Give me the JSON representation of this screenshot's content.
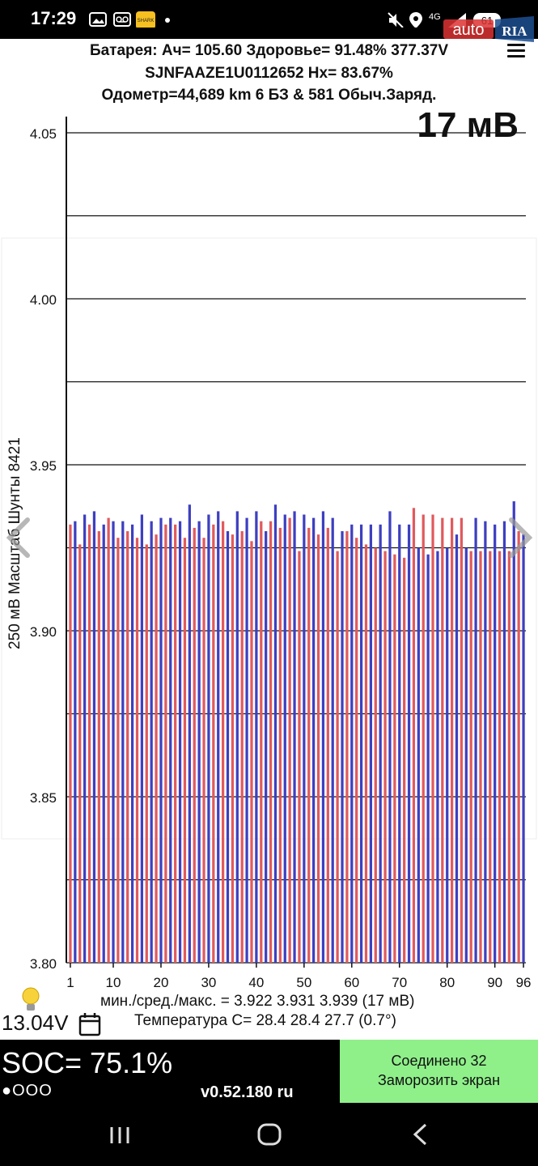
{
  "status_bar": {
    "time": "17:29",
    "icons": [
      "gallery-icon",
      "voicemail-icon",
      "shark-app-icon",
      "dot-icon",
      "mute-icon",
      "location-icon",
      "4g-signal-icon",
      "battery-icon"
    ],
    "battery_level": "61",
    "network": "4G"
  },
  "watermark": {
    "left": "auto",
    "right": "RIA"
  },
  "header": {
    "line1": "Батарея:  Ач= 105.60  Здоровье= 91.48%   377.37V",
    "line2": "SJNFAAZE1U0112652   Hx= 83.67%",
    "line3": "Одометр=44,689 km 6 БЗ & 581 Обыч.Заряд."
  },
  "chart_data": {
    "type": "bar",
    "y_axis_label": "250 мВ Масштаб   Шунты 8421",
    "spread_label": "17 мВ",
    "ylim": [
      3.8,
      4.06
    ],
    "y_ticks": [
      "3.80",
      "3.85",
      "3.90",
      "3.95",
      "4.00",
      "4.05"
    ],
    "x_ticks": [
      "1",
      "10",
      "20",
      "30",
      "40",
      "50",
      "60",
      "70",
      "80",
      "90",
      "96"
    ],
    "grid": true,
    "colors": {
      "odd": "#e05a5e",
      "even": "#3d3fc0"
    },
    "cells": [
      1,
      2,
      3,
      4,
      5,
      6,
      7,
      8,
      9,
      10,
      11,
      12,
      13,
      14,
      15,
      16,
      17,
      18,
      19,
      20,
      21,
      22,
      23,
      24,
      25,
      26,
      27,
      28,
      29,
      30,
      31,
      32,
      33,
      34,
      35,
      36,
      37,
      38,
      39,
      40,
      41,
      42,
      43,
      44,
      45,
      46,
      47,
      48,
      49,
      50,
      51,
      52,
      53,
      54,
      55,
      56,
      57,
      58,
      59,
      60,
      61,
      62,
      63,
      64,
      65,
      66,
      67,
      68,
      69,
      70,
      71,
      72,
      73,
      74,
      75,
      76,
      77,
      78,
      79,
      80,
      81,
      82,
      83,
      84,
      85,
      86,
      87,
      88,
      89,
      90,
      91,
      92,
      93,
      94,
      95,
      96
    ],
    "values": [
      3.932,
      3.933,
      3.926,
      3.935,
      3.932,
      3.936,
      3.93,
      3.932,
      3.934,
      3.933,
      3.928,
      3.933,
      3.93,
      3.932,
      3.928,
      3.935,
      3.926,
      3.933,
      3.929,
      3.934,
      3.932,
      3.934,
      3.932,
      3.933,
      3.928,
      3.938,
      3.931,
      3.933,
      3.928,
      3.935,
      3.932,
      3.936,
      3.933,
      3.93,
      3.929,
      3.936,
      3.93,
      3.934,
      3.927,
      3.936,
      3.933,
      3.93,
      3.933,
      3.938,
      3.931,
      3.935,
      3.934,
      3.936,
      3.924,
      3.935,
      3.931,
      3.934,
      3.929,
      3.936,
      3.931,
      3.934,
      3.924,
      3.93,
      3.93,
      3.932,
      3.928,
      3.932,
      3.926,
      3.932,
      3.925,
      3.932,
      3.924,
      3.936,
      3.923,
      3.932,
      3.922,
      3.932,
      3.937,
      3.925,
      3.935,
      3.923,
      3.935,
      3.924,
      3.934,
      3.925,
      3.934,
      3.929,
      3.934,
      3.925,
      3.924,
      3.934,
      3.924,
      3.933,
      3.924,
      3.932,
      3.924,
      3.933,
      3.924,
      3.939,
      3.93,
      3.929
    ]
  },
  "stats": {
    "line": "мин./сред./макс. = 3.922  3.931  3.939  (17 мВ)",
    "temp_line": "Температура С= 28.4   28.4   27.7  (0.7°)",
    "aux_voltage": "13.04V"
  },
  "bottom": {
    "soc": "SOC= 75.1%",
    "dots": "●OOO",
    "version": "v0.52.180 ru",
    "connected": "Соединено 32",
    "freeze": "Заморозить экран"
  },
  "colors": {
    "green_button": "#8ff08a",
    "bar_red": "#e05a5e",
    "bar_blue": "#3d3fc0"
  }
}
